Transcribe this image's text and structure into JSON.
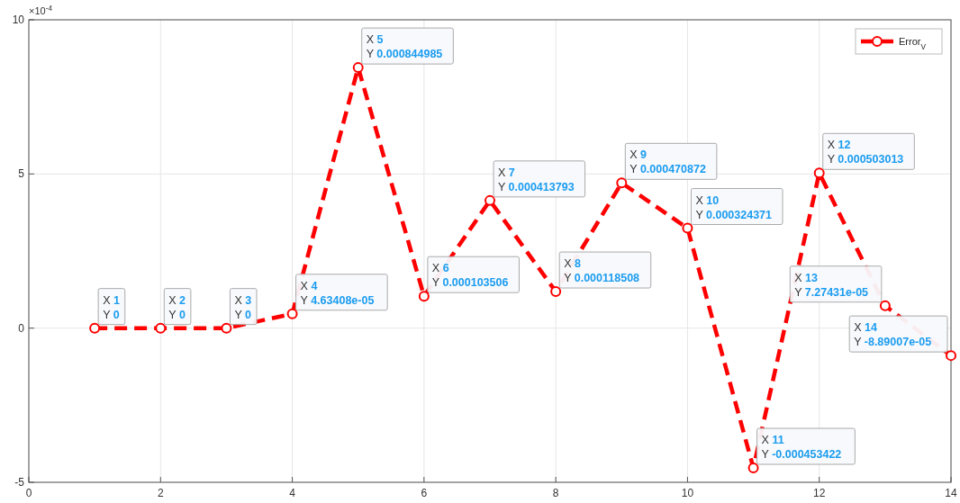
{
  "chart_data": {
    "type": "line",
    "x": [
      1,
      2,
      3,
      4,
      5,
      6,
      7,
      8,
      9,
      10,
      11,
      12,
      13,
      14
    ],
    "series": [
      {
        "name": "Error$_{V}$",
        "color": "#ff0000",
        "values": [
          0,
          0,
          0,
          0.463408,
          8.44985,
          1.03506,
          4.13793,
          1.18508,
          4.70872,
          3.24371,
          -4.53422,
          5.03013,
          0.727431,
          -0.889007
        ]
      }
    ],
    "xlim": [
      0,
      14
    ],
    "xticks": [
      0,
      2,
      4,
      6,
      8,
      10,
      12,
      14
    ],
    "ylim": [
      -5,
      10
    ],
    "yticks": [
      -5,
      0,
      5,
      10
    ],
    "grid": true,
    "legend": "top right",
    "marker": "circle",
    "line_style": "dashed",
    "annotations": [
      "×10$^{-4}$",
      {
        "text": "X 1\nY 0",
        "x": 1,
        "y": 0
      },
      {
        "text": "X 2\nY 0",
        "x": 2,
        "y": 0
      },
      {
        "text": "X 3\nY 0",
        "x": 3,
        "y": 0
      },
      {
        "text": "X 4\nY 4.63408e-05",
        "x": 4,
        "y": 0.463408
      },
      {
        "text": "X 5\nY 0.000844985",
        "x": 5,
        "y": 8.44985
      },
      {
        "text": "X 6\nY 0.000103506",
        "x": 6,
        "y": 1.03506
      },
      {
        "text": "X 7\nY 0.000413793",
        "x": 7,
        "y": 4.13793
      },
      {
        "text": "X 8\nY 0.000118508",
        "x": 8,
        "y": 1.18508
      },
      {
        "text": "X 9\nY 0.000470872",
        "x": 9,
        "y": 4.70872
      },
      {
        "text": "X 10\nY 0.000324371",
        "x": 10,
        "y": 3.24371
      },
      {
        "text": "X 11\nY -0.000453422",
        "x": 11,
        "y": -4.53422
      },
      {
        "text": "X 12\nY 0.000503013",
        "x": 12,
        "y": 5.03013
      },
      {
        "text": "X 13\nY 7.27431e-05",
        "x": 13,
        "y": 0.727431
      },
      {
        "text": "X 14\nY -8.89007e-05",
        "x": 14,
        "y": -0.889007
      }
    ]
  }
}
